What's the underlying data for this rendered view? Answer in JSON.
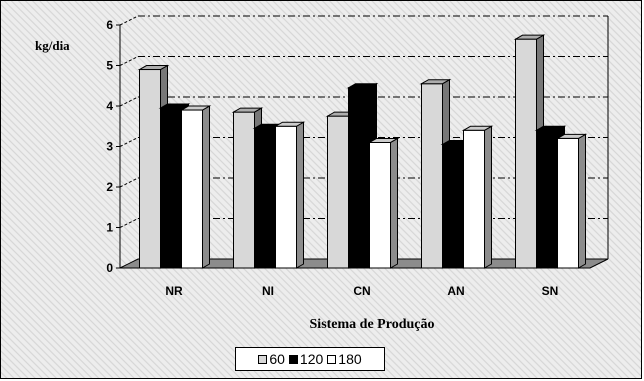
{
  "chart_data": {
    "type": "bar",
    "ylabel": "kg/dia",
    "xlabel": "Sistema de Produção",
    "categories": [
      "NR",
      "NI",
      "CN",
      "AN",
      "SN"
    ],
    "ylim": [
      0,
      6
    ],
    "yticks": [
      "0",
      "1",
      "2",
      "3",
      "4",
      "5",
      "6"
    ],
    "grid": true,
    "legend_position": "bottom",
    "series": [
      {
        "name": "60",
        "color": "#d8d8d8",
        "values": [
          4.9,
          3.85,
          3.75,
          4.55,
          5.65
        ]
      },
      {
        "name": "120",
        "color": "#000000",
        "values": [
          3.95,
          3.45,
          4.45,
          3.05,
          3.4
        ]
      },
      {
        "name": "180",
        "color": "#ffffff",
        "values": [
          3.9,
          3.5,
          3.1,
          3.4,
          3.2
        ]
      }
    ]
  }
}
